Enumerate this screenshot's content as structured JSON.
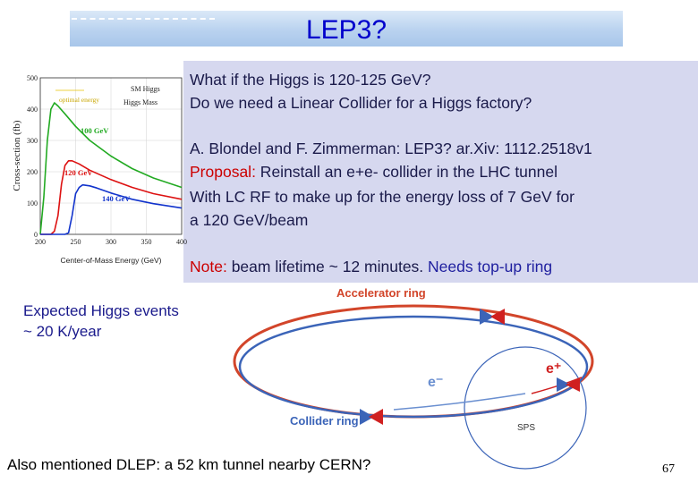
{
  "title": "LEP3?",
  "info": {
    "line1": "What if the Higgs is 120-125 GeV?",
    "line2": "Do we need a Linear Collider for a Higgs factory?",
    "line3": "A. Blondel and F. Zimmerman: LEP3? ar.Xiv: 1112.2518v1",
    "proposal_label": "Proposal:",
    "proposal_text": " Reinstall an e+e- collider in the LHC tunnel",
    "line5": "With LC RF to make up for the energy loss of 7 GeV for",
    "line6": "a 120 GeV/beam",
    "note_label": "Note:",
    "note_text": " beam lifetime ~ 12 minutes.",
    "note_tail": " Needs top-up ring"
  },
  "chart_data": {
    "type": "line",
    "ylabel": "Cross-section (fb)",
    "xlabel": "Center-of-Mass Energy (GeV)",
    "xlim": [
      200,
      400
    ],
    "ylim": [
      0,
      500
    ],
    "x_ticks": [
      "200",
      "250",
      "300",
      "350",
      "400"
    ],
    "y_ticks": [
      "0",
      "100",
      "200",
      "300",
      "400",
      "500"
    ],
    "legend": {
      "left": "optimal energy",
      "right_top": "SM Higgs",
      "right_bottom": "Higgs Mass"
    },
    "series": [
      {
        "name": "100 GeV",
        "color": "#22aa22",
        "x": [
          200,
          205,
          210,
          215,
          220,
          225,
          235,
          250,
          270,
          300,
          330,
          360,
          400
        ],
        "y": [
          0,
          120,
          300,
          400,
          420,
          410,
          385,
          345,
          300,
          250,
          210,
          180,
          150
        ]
      },
      {
        "name": "120 GeV",
        "color": "#dd1111",
        "x": [
          200,
          210,
          215,
          220,
          225,
          230,
          235,
          240,
          245,
          255,
          270,
          300,
          330,
          360,
          400
        ],
        "y": [
          0,
          0,
          0,
          10,
          60,
          160,
          220,
          235,
          235,
          225,
          205,
          175,
          150,
          130,
          112
        ]
      },
      {
        "name": "140 GeV",
        "color": "#1133cc",
        "x": [
          200,
          220,
          225,
          230,
          235,
          240,
          245,
          250,
          255,
          260,
          270,
          280,
          300,
          330,
          360,
          400
        ],
        "y": [
          0,
          0,
          0,
          0,
          0,
          5,
          60,
          130,
          150,
          158,
          155,
          148,
          132,
          112,
          98,
          84
        ]
      }
    ]
  },
  "events": {
    "line1": "Expected Higgs events",
    "line2": "~ 20 K/year"
  },
  "diagram": {
    "accelerator_label": "Accelerator  ring",
    "collider_label": "Collider  ring",
    "eplus_label": "e⁺",
    "eminus_label": "e⁻",
    "sps_label": "SPS",
    "colors": {
      "accelerator": "#d2452a",
      "collider": "#3b64b8",
      "eplus": "#d02020",
      "eminus": "#6a8fd0"
    }
  },
  "mention": "Also mentioned DLEP: a 52 km tunnel nearby CERN?",
  "page_number": "67"
}
